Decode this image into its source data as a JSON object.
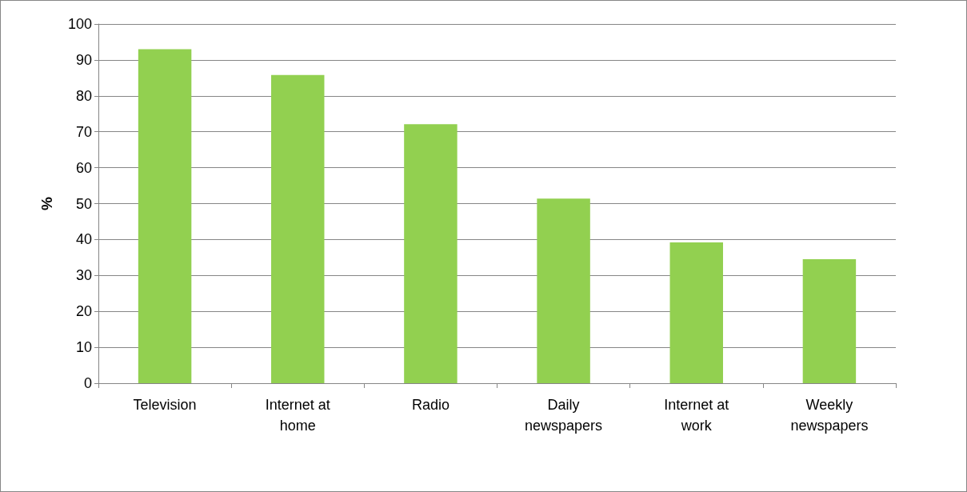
{
  "chart_data": {
    "type": "bar",
    "ylabel": "%",
    "categories": [
      "Television",
      "Internet at\nhome",
      "Radio",
      "Daily\nnewspapers",
      "Internet at\nwork",
      "Weekly\nnewspapers"
    ],
    "values": [
      93,
      85.8,
      72.1,
      51.4,
      39.2,
      34.5
    ],
    "color": "#92d050",
    "ylim": [
      0,
      100
    ],
    "yticks": [
      0,
      10,
      20,
      30,
      40,
      50,
      60,
      70,
      80,
      90,
      100
    ],
    "grid": "y"
  }
}
